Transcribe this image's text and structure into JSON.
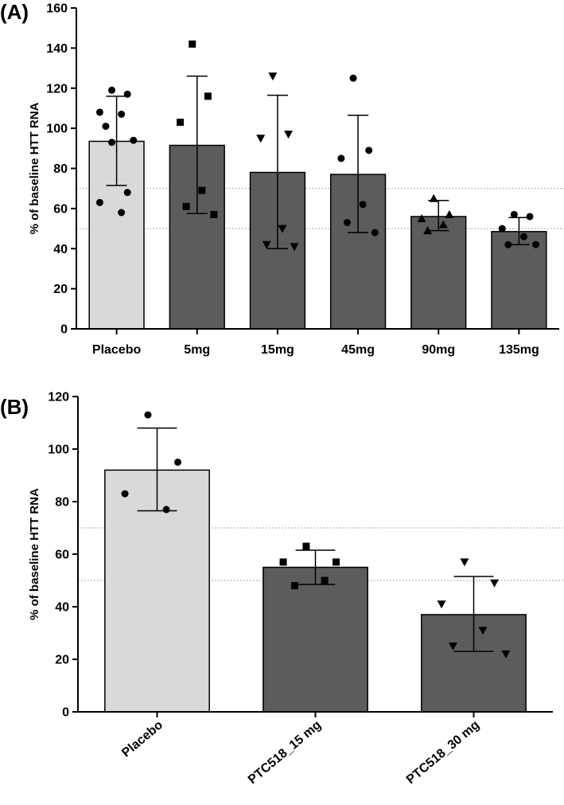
{
  "chart_data": [
    {
      "type": "bar",
      "panel_label": "(A)",
      "ylabel": "% of baseline HTT RNA",
      "xlabel": "",
      "ylim": [
        0,
        160
      ],
      "yticks": [
        0,
        20,
        40,
        60,
        80,
        100,
        120,
        140,
        160
      ],
      "reference_lines": [
        50,
        70
      ],
      "categories": [
        "Placebo",
        "5mg",
        "15mg",
        "45mg",
        "90mg",
        "135mg"
      ],
      "values": [
        93.5,
        91.5,
        78,
        77,
        56,
        48.5
      ],
      "error_lower": [
        71.5,
        57.5,
        40,
        48,
        49,
        42
      ],
      "error_upper": [
        116,
        126,
        116.5,
        106.5,
        64,
        55.5
      ],
      "bar_colors": [
        "#d9d9d9",
        "#5c5c5c",
        "#5c5c5c",
        "#5c5c5c",
        "#5c5c5c",
        "#5c5c5c"
      ],
      "markers": [
        "circle",
        "square",
        "triangle-down",
        "circle",
        "triangle-up",
        "circle"
      ],
      "points": [
        [
          119,
          117,
          108,
          107,
          101,
          94,
          93,
          68,
          63,
          58
        ],
        [
          142,
          116,
          103,
          69,
          61,
          57
        ],
        [
          126,
          97,
          95,
          50,
          42,
          41
        ],
        [
          125,
          89,
          85,
          62,
          53,
          48
        ],
        [
          65,
          57,
          55,
          52,
          49
        ],
        [
          57,
          56,
          50,
          46,
          42,
          42
        ]
      ]
    },
    {
      "type": "bar",
      "panel_label": "(B)",
      "ylabel": "% of baseline HTT RNA",
      "xlabel": "",
      "ylim": [
        0,
        120
      ],
      "yticks": [
        0,
        20,
        40,
        60,
        80,
        100,
        120
      ],
      "reference_lines": [
        50,
        70
      ],
      "categories": [
        "Placebo",
        "PTC518_15 mg",
        "PTC518_30 mg"
      ],
      "values": [
        92,
        55,
        37
      ],
      "error_lower": [
        76.5,
        48.5,
        23
      ],
      "error_upper": [
        108,
        61.5,
        51.5
      ],
      "bar_colors": [
        "#d9d9d9",
        "#5c5c5c",
        "#5c5c5c"
      ],
      "markers": [
        "circle",
        "square",
        "triangle-down"
      ],
      "points": [
        [
          113,
          95,
          83,
          77
        ],
        [
          63,
          57,
          57,
          50,
          48
        ],
        [
          57,
          49,
          41,
          31,
          25,
          22
        ]
      ]
    }
  ]
}
